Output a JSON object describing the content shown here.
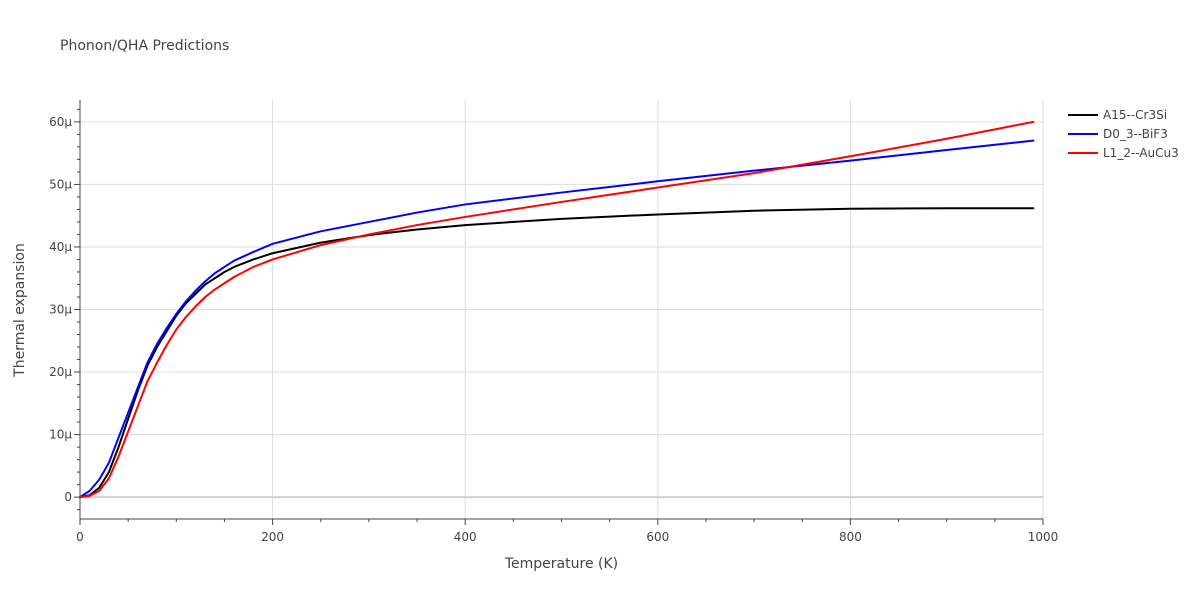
{
  "chart_data": {
    "type": "line",
    "title": "Phonon/QHA Predictions",
    "xlabel": "Temperature (K)",
    "ylabel": "Thermal expansion",
    "xlim": [
      0,
      1000
    ],
    "ylim": [
      -3.5e-06,
      6.35e-05
    ],
    "x_ticks": [
      0,
      200,
      400,
      600,
      800,
      1000
    ],
    "x_tick_labels": [
      "0",
      "200",
      "400",
      "600",
      "800",
      "1000"
    ],
    "y_ticks": [
      0,
      1e-05,
      2e-05,
      3e-05,
      4e-05,
      5e-05,
      6e-05
    ],
    "y_tick_labels": [
      "0",
      "10μ",
      "20μ",
      "30μ",
      "40μ",
      "50μ",
      "60μ"
    ],
    "grid": true,
    "legend": "top-right",
    "series": [
      {
        "name": "A15--Cr3Si",
        "color": "#000000",
        "points": [
          [
            0,
            0
          ],
          [
            10,
            3e-07
          ],
          [
            20,
            1.5e-06
          ],
          [
            30,
            4e-06
          ],
          [
            40,
            8e-06
          ],
          [
            50,
            1.25e-05
          ],
          [
            60,
            1.7e-05
          ],
          [
            70,
            2.1e-05
          ],
          [
            80,
            2.4e-05
          ],
          [
            90,
            2.65e-05
          ],
          [
            100,
            2.9e-05
          ],
          [
            110,
            3.1e-05
          ],
          [
            120,
            3.25e-05
          ],
          [
            130,
            3.4e-05
          ],
          [
            140,
            3.5e-05
          ],
          [
            150,
            3.6e-05
          ],
          [
            160,
            3.68e-05
          ],
          [
            180,
            3.8e-05
          ],
          [
            200,
            3.9e-05
          ],
          [
            250,
            4.07e-05
          ],
          [
            300,
            4.19e-05
          ],
          [
            350,
            4.28e-05
          ],
          [
            400,
            4.35e-05
          ],
          [
            500,
            4.45e-05
          ],
          [
            600,
            4.52e-05
          ],
          [
            700,
            4.58e-05
          ],
          [
            800,
            4.61e-05
          ],
          [
            900,
            4.62e-05
          ],
          [
            990,
            4.62e-05
          ]
        ]
      },
      {
        "name": "D0_3--BiF3",
        "color": "#0000ff",
        "points": [
          [
            0,
            0
          ],
          [
            10,
            1e-06
          ],
          [
            20,
            2.8e-06
          ],
          [
            30,
            5.5e-06
          ],
          [
            40,
            9.5e-06
          ],
          [
            50,
            1.35e-05
          ],
          [
            60,
            1.75e-05
          ],
          [
            70,
            2.15e-05
          ],
          [
            80,
            2.45e-05
          ],
          [
            90,
            2.7e-05
          ],
          [
            100,
            2.93e-05
          ],
          [
            110,
            3.13e-05
          ],
          [
            120,
            3.3e-05
          ],
          [
            130,
            3.45e-05
          ],
          [
            140,
            3.58e-05
          ],
          [
            150,
            3.68e-05
          ],
          [
            160,
            3.78e-05
          ],
          [
            180,
            3.92e-05
          ],
          [
            200,
            4.05e-05
          ],
          [
            250,
            4.25e-05
          ],
          [
            300,
            4.4e-05
          ],
          [
            350,
            4.55e-05
          ],
          [
            400,
            4.68e-05
          ],
          [
            500,
            4.87e-05
          ],
          [
            600,
            5.05e-05
          ],
          [
            700,
            5.22e-05
          ],
          [
            800,
            5.38e-05
          ],
          [
            900,
            5.55e-05
          ],
          [
            990,
            5.7e-05
          ]
        ]
      },
      {
        "name": "L1_2--AuCu3",
        "color": "#ff0000",
        "points": [
          [
            0,
            0
          ],
          [
            10,
            2e-07
          ],
          [
            20,
            1e-06
          ],
          [
            30,
            3e-06
          ],
          [
            40,
            6.5e-06
          ],
          [
            50,
            1.05e-05
          ],
          [
            60,
            1.45e-05
          ],
          [
            70,
            1.85e-05
          ],
          [
            80,
            2.15e-05
          ],
          [
            90,
            2.43e-05
          ],
          [
            100,
            2.68e-05
          ],
          [
            110,
            2.88e-05
          ],
          [
            120,
            3.05e-05
          ],
          [
            130,
            3.2e-05
          ],
          [
            140,
            3.32e-05
          ],
          [
            150,
            3.42e-05
          ],
          [
            160,
            3.52e-05
          ],
          [
            180,
            3.68e-05
          ],
          [
            200,
            3.8e-05
          ],
          [
            250,
            4.03e-05
          ],
          [
            300,
            4.2e-05
          ],
          [
            350,
            4.35e-05
          ],
          [
            400,
            4.48e-05
          ],
          [
            500,
            4.72e-05
          ],
          [
            600,
            4.95e-05
          ],
          [
            700,
            5.18e-05
          ],
          [
            800,
            5.45e-05
          ],
          [
            900,
            5.73e-05
          ],
          [
            990,
            6e-05
          ]
        ]
      }
    ]
  }
}
